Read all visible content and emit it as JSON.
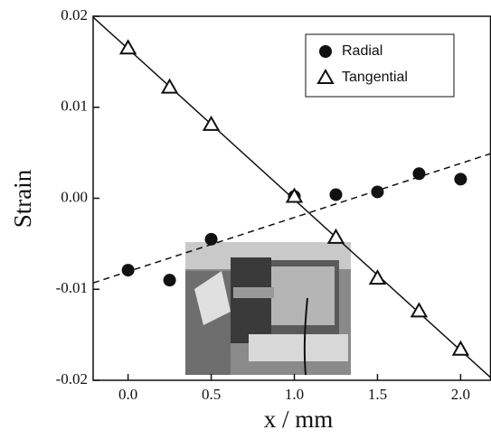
{
  "chart_data": {
    "type": "scatter",
    "xlabel": "x  /  mm",
    "ylabel": "Strain",
    "xlim": [
      -0.21,
      2.18
    ],
    "ylim": [
      -0.02,
      0.02
    ],
    "xticks": [
      {
        "value": 0,
        "label": "0.0"
      },
      0.5,
      {
        "value": 1,
        "label": "1.0"
      },
      1.5,
      {
        "value": 2,
        "label": "2.0"
      }
    ],
    "yticks": [
      0.02,
      0.01,
      {
        "value": 0,
        "label": "0.00"
      },
      -0.01,
      -0.02
    ],
    "legend": "upper right",
    "series": [
      {
        "name": "Radial",
        "marker": "circle",
        "color": "#111111",
        "x": [
          0,
          0.25,
          0.5,
          1.0,
          1.25,
          1.5,
          1.75,
          2.0
        ],
        "values": [
          -0.0079,
          -0.009,
          -0.0045,
          0.0002,
          0.0004,
          0.0007,
          0.0027,
          0.0021
        ],
        "fit": {
          "style": "dashed",
          "x": [
            -0.21,
            2.18
          ],
          "y": [
            -0.0093,
            0.0049
          ]
        }
      },
      {
        "name": "Tangential",
        "marker": "triangle",
        "color": "#111111",
        "x": [
          0,
          0.25,
          0.5,
          1.0,
          1.25,
          1.5,
          1.75,
          2.0
        ],
        "values": [
          0.0165,
          0.0122,
          0.0081,
          0.0002,
          -0.0043,
          -0.0088,
          -0.0124,
          -0.0166
        ],
        "fit": {
          "style": "solid",
          "x": [
            -0.21,
            2.18
          ],
          "y": [
            0.0199,
            -0.0197
          ]
        }
      }
    ]
  }
}
